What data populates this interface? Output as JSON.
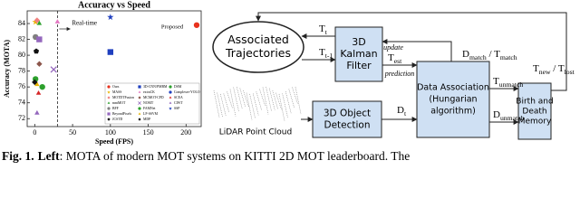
{
  "chart_data": {
    "type": "scatter",
    "title": "Accuracy vs Speed",
    "x_label": "Speed (FPS)",
    "y_label": "Accuracy (MOTA)",
    "xlim": [
      -10,
      220
    ],
    "xticks": [
      0,
      50,
      100,
      150,
      200
    ],
    "ylim": [
      71,
      85.6
    ],
    "yticks": [
      72,
      74,
      76,
      78,
      80,
      82,
      84
    ],
    "reference_line": {
      "x": 30,
      "label": "Real-time"
    },
    "annotation": "Proposed",
    "points": [
      {
        "name": "Ours",
        "x": 214,
        "y": 83.8,
        "color": "#e8321e",
        "marker": "circle"
      },
      {
        "name": "MASS",
        "x": 1,
        "y": 84.2,
        "color": "#e8b400",
        "marker": "star"
      },
      {
        "name": "MOTDTFusion",
        "x": 3,
        "y": 84.4,
        "color": "#f08080",
        "marker": "diamond"
      },
      {
        "name": "mmMOT",
        "x": 6,
        "y": 84.0,
        "color": "#2ca02c",
        "marker": "triangle"
      },
      {
        "name": "BFF",
        "x": 1,
        "y": 82.3,
        "color": "#7f7f7f",
        "marker": "circle"
      },
      {
        "name": "BeyondPixels",
        "x": 6,
        "y": 82.0,
        "color": "#9467bd",
        "marker": "square"
      },
      {
        "name": "JCSTD",
        "x": 2,
        "y": 80.5,
        "color": "#111111",
        "marker": "pentagon"
      },
      {
        "name": "3D-CNN/PMBM",
        "x": 100,
        "y": 80.4,
        "color": "#1f3fbf",
        "marker": "square"
      },
      {
        "name": "extraCK",
        "x": 30,
        "y": 84.2,
        "color": "#e377c2",
        "marker": "triangle"
      },
      {
        "name": "MCMOT-CPD",
        "x": 6,
        "y": 78.9,
        "color": "#8c564b",
        "marker": "diamond"
      },
      {
        "name": "NOMT",
        "x": 25,
        "y": 78.2,
        "color": "#9467bd",
        "marker": "x"
      },
      {
        "name": "FAMNet",
        "x": 1,
        "y": 77.0,
        "color": "#2ca02c",
        "marker": "circle"
      },
      {
        "name": "LP-SSVM",
        "x": 3,
        "y": 76.3,
        "color": "#e8b400",
        "marker": "triangle"
      },
      {
        "name": "MDP",
        "x": 0,
        "y": 76.6,
        "color": "#111111",
        "marker": "diamond"
      },
      {
        "name": "DSM",
        "x": 10,
        "y": 76.0,
        "color": "#2ca02c",
        "marker": "circle"
      },
      {
        "name": "Complexer-YOLO",
        "x": 100,
        "y": 75.7,
        "color": "#1f3fbf",
        "marker": "circle"
      },
      {
        "name": "SCEA",
        "x": 5,
        "y": 75.2,
        "color": "#d62728",
        "marker": "triangle"
      },
      {
        "name": "CIWT",
        "x": 3,
        "y": 72.7,
        "color": "#9467bd",
        "marker": "triangle"
      },
      {
        "name": "SSP",
        "x": 100,
        "y": 84.8,
        "color": "#1f3fbf",
        "marker": "star"
      }
    ]
  },
  "diagram": {
    "trajectories": [
      "Associated",
      "Trajectories"
    ],
    "kalman": [
      "3D",
      "Kalman",
      "Filter"
    ],
    "association": [
      "Data Association",
      "(Hungarian",
      "algorithm)"
    ],
    "detection": [
      "3D Object",
      "Detection"
    ],
    "memory": [
      "Birth and",
      "Death",
      "Memory"
    ],
    "lidar": "LiDAR Point Cloud",
    "update": "update",
    "prediction": "prediction",
    "edges": {
      "t": [
        {
          "text": "T"
        },
        {
          "text": "t",
          "sub": true
        }
      ],
      "t_prev": [
        {
          "text": "T"
        },
        {
          "text": "t-1",
          "sub": true
        }
      ],
      "t_est": [
        {
          "text": "T"
        },
        {
          "text": "est",
          "sub": true
        }
      ],
      "d_t": [
        {
          "text": "D"
        },
        {
          "text": "t",
          "sub": true
        }
      ],
      "match": [
        {
          "text": "D"
        },
        {
          "text": "match",
          "sub": true
        },
        {
          "text": " / T"
        },
        {
          "text": "match",
          "sub": true
        }
      ],
      "t_unmatch": [
        {
          "text": "T"
        },
        {
          "text": "unmatch",
          "sub": true
        }
      ],
      "d_unmatch": [
        {
          "text": "D"
        },
        {
          "text": "unmatch",
          "sub": true
        }
      ],
      "new_lost": [
        {
          "text": "T"
        },
        {
          "text": "new",
          "sub": true
        },
        {
          "text": " / T"
        },
        {
          "text": "lost",
          "sub": true
        }
      ]
    }
  },
  "caption": [
    {
      "text": "Fig. 1.",
      "bold": true
    },
    {
      "text": "Left",
      "bold": true
    },
    {
      "text": ": MOTA of modern MOT systems on KITTI 2D MOT leaderboard. The"
    }
  ]
}
